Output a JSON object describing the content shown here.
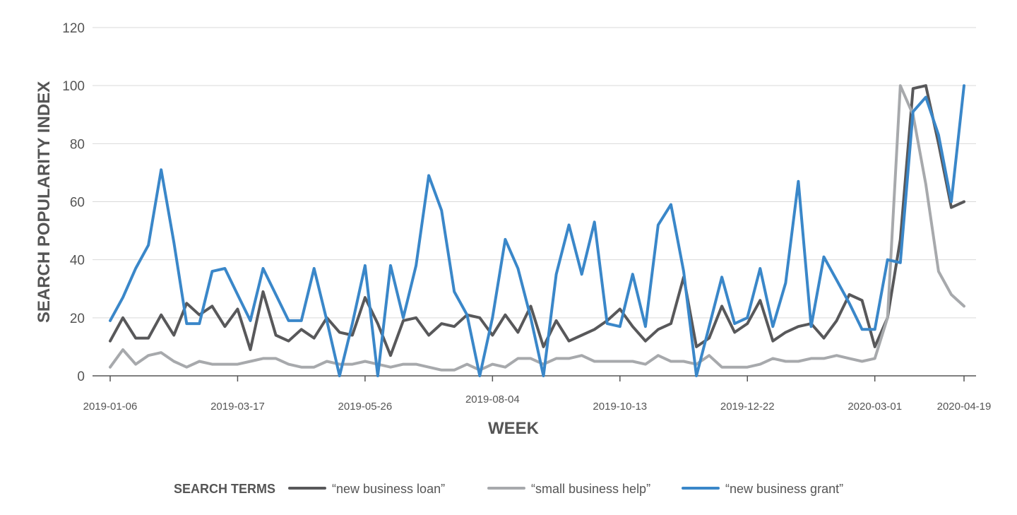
{
  "chart_data": {
    "type": "line",
    "title": "",
    "xlabel": "WEEK",
    "ylabel": "SEARCH POPULARITY INDEX",
    "ylim": [
      0,
      120
    ],
    "yticks": [
      0,
      20,
      40,
      60,
      80,
      100,
      120
    ],
    "grid": "horizontal",
    "x_tick_labels": [
      "2019-01-06",
      "2019-03-17",
      "2019-05-26",
      "2019-08-04",
      "2019-10-13",
      "2019-12-22",
      "2020-03-01",
      "2020-04-19"
    ],
    "x_tick_positions": [
      0,
      10,
      20,
      30,
      40,
      50,
      60,
      67
    ],
    "legend": {
      "title": "SEARCH TERMS",
      "placement": "bottom-center"
    },
    "series": [
      {
        "name": "“new business loan”",
        "color": "#58585a",
        "values": [
          12,
          20,
          13,
          13,
          21,
          14,
          25,
          21,
          24,
          17,
          23,
          9,
          29,
          14,
          12,
          16,
          13,
          20,
          15,
          14,
          27,
          18,
          7,
          19,
          20,
          14,
          18,
          17,
          21,
          20,
          14,
          21,
          15,
          24,
          10,
          19,
          12,
          14,
          16,
          19,
          23,
          17,
          12,
          16,
          18,
          34,
          10,
          13,
          24,
          15,
          18,
          26,
          12,
          15,
          17,
          18,
          13,
          19,
          28,
          26,
          10,
          20,
          47,
          99,
          100,
          80,
          58,
          60
        ]
      },
      {
        "name": "“small business help”",
        "color": "#a7a9ac",
        "values": [
          3,
          9,
          4,
          7,
          8,
          5,
          3,
          5,
          4,
          4,
          4,
          5,
          6,
          6,
          4,
          3,
          3,
          5,
          4,
          4,
          5,
          4,
          3,
          4,
          4,
          3,
          2,
          2,
          4,
          2,
          4,
          3,
          6,
          6,
          4,
          6,
          6,
          7,
          5,
          5,
          5,
          5,
          4,
          7,
          5,
          5,
          4,
          7,
          3,
          3,
          3,
          4,
          6,
          5,
          5,
          6,
          6,
          7,
          6,
          5,
          6,
          20,
          100,
          90,
          66,
          36,
          28,
          24
        ]
      },
      {
        "name": "“new business grant”",
        "color": "#3a87c9",
        "values": [
          19,
          27,
          37,
          45,
          71,
          46,
          18,
          18,
          36,
          37,
          28,
          19,
          37,
          28,
          19,
          19,
          37,
          19,
          0,
          18,
          38,
          0,
          38,
          20,
          38,
          69,
          57,
          29,
          21,
          0,
          20,
          47,
          37,
          20,
          0,
          35,
          52,
          35,
          53,
          18,
          17,
          35,
          17,
          52,
          59,
          36,
          0,
          17,
          34,
          18,
          20,
          37,
          17,
          32,
          67,
          17,
          41,
          33,
          25,
          16,
          16,
          40,
          39,
          91,
          96,
          83,
          60,
          100
        ]
      }
    ]
  }
}
